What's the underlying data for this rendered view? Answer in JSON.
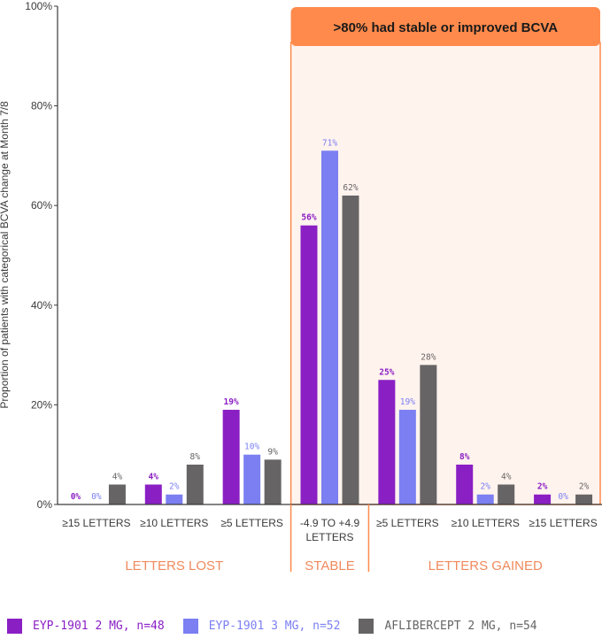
{
  "chart_data": {
    "type": "bar",
    "ylabel": "Proportion of patients with categorical BCVA change at Month 7/8",
    "ylim": [
      0,
      100
    ],
    "yticks": [
      "0%",
      "20%",
      "40%",
      "60%",
      "80%",
      "100%"
    ],
    "categories": [
      "≥15 LETTERS",
      "≥10 LETTERS",
      "≥5 LETTERS",
      "-4.9 TO +4.9 LETTERS",
      "≥5 LETTERS",
      "≥10 LETTERS",
      "≥15 LETTERS"
    ],
    "series": [
      {
        "name": "EYP-1901 2 MG, n=48",
        "color": "#8a1fc4",
        "values": [
          0,
          4,
          19,
          56,
          25,
          8,
          2
        ],
        "labels": [
          "0%",
          "4%",
          "19%",
          "56%",
          "25%",
          "8%",
          "2%"
        ]
      },
      {
        "name": "EYP-1901 3 MG, n=52",
        "color": "#7b7ff2",
        "values": [
          0,
          2,
          10,
          71,
          19,
          2,
          0
        ],
        "labels": [
          "0%",
          "2%",
          "10%",
          "71%",
          "19%",
          "2%",
          "0%"
        ]
      },
      {
        "name": "AFLIBERCEPT 2 MG, n=54",
        "color": "#666464",
        "values": [
          4,
          8,
          9,
          62,
          28,
          4,
          2
        ],
        "labels": [
          "4%",
          "8%",
          "9%",
          "62%",
          "28%",
          "4%",
          "2%"
        ]
      }
    ],
    "groups": [
      {
        "label": "LETTERS LOST",
        "categories": [
          0,
          1,
          2
        ]
      },
      {
        "label": "STABLE",
        "categories": [
          3
        ]
      },
      {
        "label": "LETTERS GAINED",
        "categories": [
          4,
          5,
          6
        ]
      }
    ],
    "annotation": ">80% had stable or improved BCVA",
    "colors": {
      "accent": "#ff8a4c",
      "group_label": "#f08a5d",
      "highlight_fill": "#fff3ee"
    },
    "legend_position": "bottom-left",
    "grid": false
  }
}
